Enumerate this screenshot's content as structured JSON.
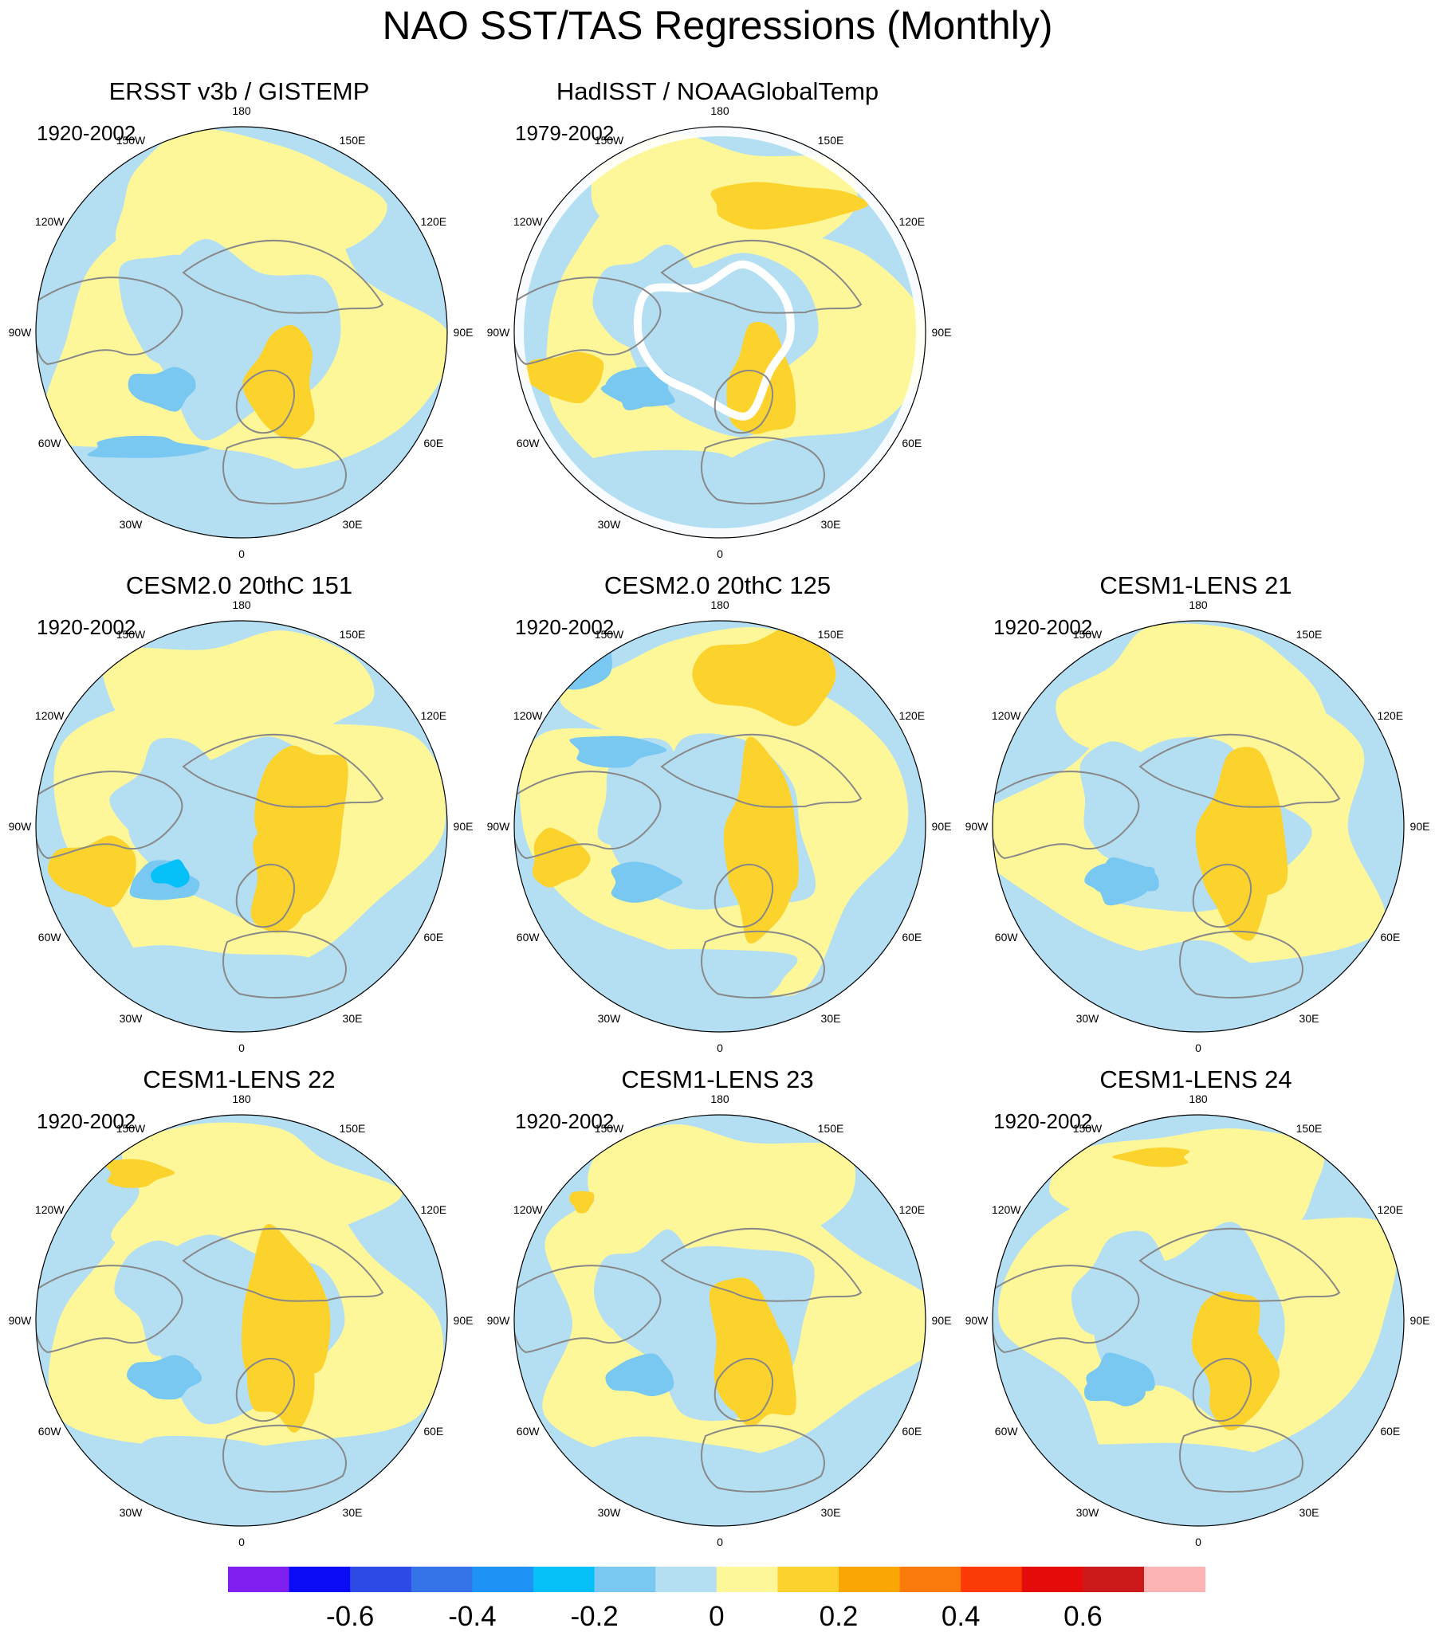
{
  "title": "NAO SST/TAS Regressions (Monthly)",
  "panels": [
    {
      "title": "ERSST v3b / GISTEMP",
      "period": "1920-2002",
      "variant": "obs1"
    },
    {
      "title": "HadISST / NOAAGlobalTemp",
      "period": "1979-2002",
      "variant": "obs2"
    },
    {
      "title": "CESM2.0 20thC 151",
      "period": "1920-2002",
      "variant": "c151"
    },
    {
      "title": "CESM2.0 20thC 125",
      "period": "1920-2002",
      "variant": "c125"
    },
    {
      "title": "CESM1-LENS 21",
      "period": "1920-2002",
      "variant": "l21"
    },
    {
      "title": "CESM1-LENS 22",
      "period": "1920-2002",
      "variant": "l22"
    },
    {
      "title": "CESM1-LENS 23",
      "period": "1920-2002",
      "variant": "l23"
    },
    {
      "title": "CESM1-LENS 24",
      "period": "1920-2002",
      "variant": "l24"
    }
  ],
  "longitude_labels": [
    "180",
    "150E",
    "120E",
    "90E",
    "60E",
    "30E",
    "0",
    "30W",
    "60W",
    "90W",
    "120W",
    "150W"
  ],
  "colorbar": {
    "colors": [
      "#7f1ff0",
      "#0b0bf5",
      "#2d49e6",
      "#3574e8",
      "#1f93f5",
      "#06c1f7",
      "#79c8f2",
      "#b4dff3",
      "#fdf79a",
      "#fcd22c",
      "#fba807",
      "#fb7a0c",
      "#fb3a07",
      "#e50b0b",
      "#cc1a1a",
      "#fdb4b4"
    ],
    "tick_labels": [
      "-0.6",
      "-0.4",
      "-0.2",
      "0",
      "0.2",
      "0.4",
      "0.6"
    ]
  },
  "palette": {
    "neg_light": "#b4dff3",
    "neg_mid": "#79c8f2",
    "neg_strong": "#06c1f7",
    "pos_light": "#fdf79a",
    "pos_mid": "#fcd22c",
    "pos_strong": "#fba807",
    "pos_deep": "#e50b0b",
    "land": "#ffffff",
    "coast": "#888888"
  }
}
